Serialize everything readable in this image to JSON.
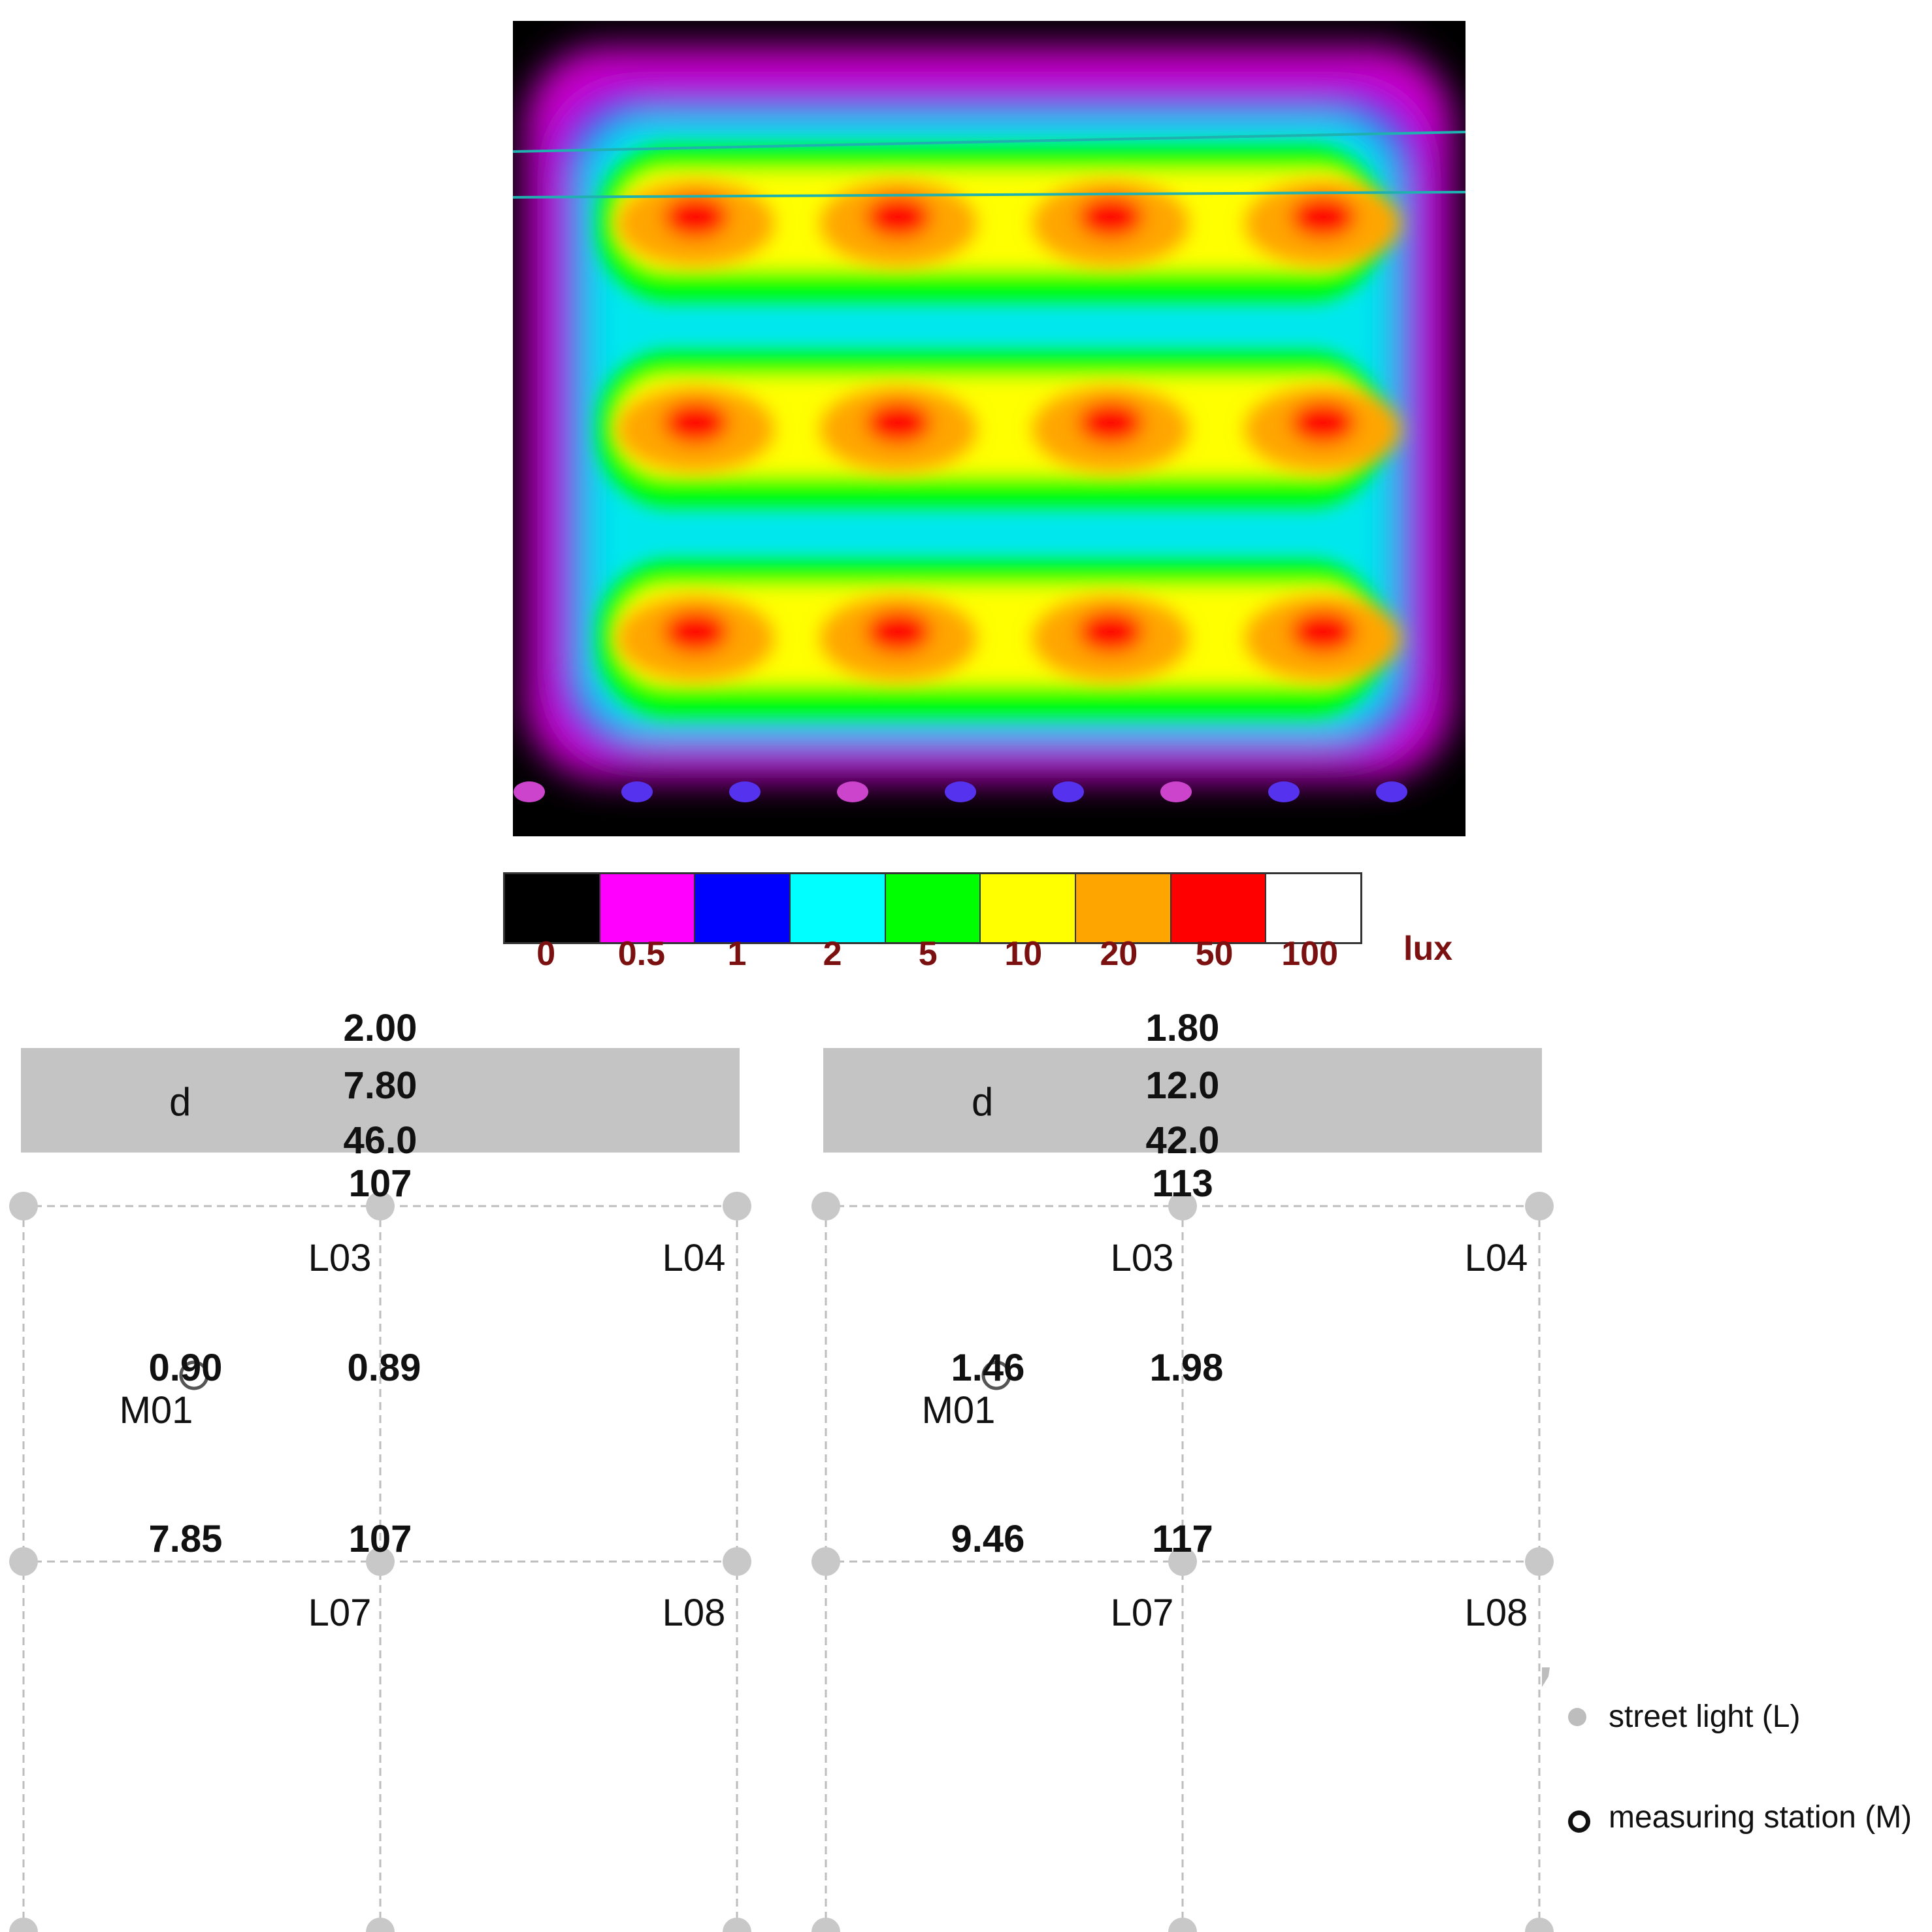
{
  "colorbar": {
    "colors": [
      "#000000",
      "#ff00ff",
      "#0000ff",
      "#00ffff",
      "#00ff00",
      "#ffff00",
      "#ffa500",
      "#ff0000",
      "#ffffff"
    ],
    "labels": [
      "0",
      "0.5",
      "1",
      "2",
      "5",
      "10",
      "20",
      "50",
      "100"
    ],
    "unit": "lux"
  },
  "panels": [
    {
      "d_label": "d",
      "column_values": [
        "2.00",
        "7.80",
        "46.0",
        "107"
      ],
      "light_labels": [
        "L03",
        "L04",
        "L07",
        "L08"
      ],
      "station_label": "M01",
      "mid_values": [
        "0.90",
        "0.89"
      ],
      "low_values": [
        "7.85",
        "107"
      ]
    },
    {
      "d_label": "d",
      "column_values": [
        "1.80",
        "12.0",
        "42.0",
        "113"
      ],
      "light_labels": [
        "L03",
        "L04",
        "L07",
        "L08"
      ],
      "station_label": "M01",
      "mid_values": [
        "1.46",
        "1.98"
      ],
      "low_values": [
        "9.46",
        "117"
      ]
    }
  ],
  "legend": {
    "street_light": "street light (L)",
    "measuring_station": "measuring station (M)",
    "street_light_color": "#bdbdbd",
    "station_color": "#111111"
  }
}
